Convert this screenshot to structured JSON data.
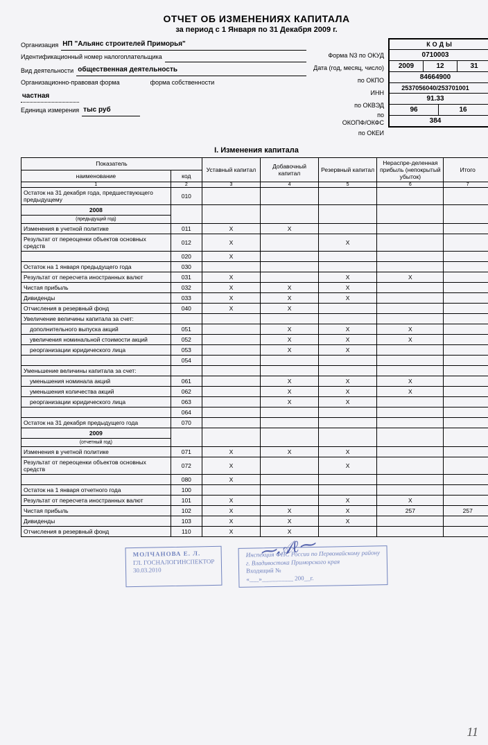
{
  "title": "ОТЧЕТ ОБ ИЗМЕНЕНИЯХ КАПИТАЛА",
  "period": "за период с 1 Января по 31 Декабря 2009 г.",
  "header": {
    "org_label": "Организация",
    "org_value": "НП \"Альянс строителей Приморья\"",
    "inn_label": "Идентификационный номер налогоплательщика",
    "activity_label": "Вид деятельности",
    "activity_value": "общественная деятельность",
    "form_label": "Организационно-правовая форма",
    "own_label": "форма собственности",
    "private": "частная",
    "unit_label": "Единица измерения",
    "unit_value": "тыс руб"
  },
  "code_labels": {
    "okud": "Форма N3 по ОКУД",
    "date": "Дата (год, месяц, число)",
    "okpo": "по ОКПО",
    "inn": "ИНН",
    "okved": "по ОКВЭД",
    "okopf": "по\nОКОПФ/ОКФС",
    "okei": "по ОКЕИ"
  },
  "codes": {
    "header": "КОДЫ",
    "okud": "0710003",
    "date_y": "2009",
    "date_m": "12",
    "date_d": "31",
    "okpo": "84664900",
    "inn": "2537056040/253701001",
    "okved": "91.33",
    "okopf": "96",
    "okfs": "16",
    "okei": "384"
  },
  "section1_title": "I. Изменения капитала",
  "table": {
    "head": {
      "indicator": "Показатель",
      "name": "наименование",
      "code": "код",
      "c3": "Уставный капитал",
      "c4": "Добавочный капитал",
      "c5": "Резервный капитал",
      "c6": "Нераспре-деленная прибыль (непокрытый убыток)",
      "c7": "Итого"
    },
    "colnums": [
      "1",
      "2",
      "3",
      "4",
      "5",
      "6",
      "7"
    ],
    "rows": [
      {
        "t": "d",
        "name": "Остаток на 31 декабря года, предшествующего предыдущему",
        "code": "010"
      },
      {
        "t": "y",
        "year": "2008",
        "note": "(предыдущий год)"
      },
      {
        "t": "d",
        "name": "Изменения в учетной политике",
        "code": "011",
        "v": [
          "Х",
          "Х",
          "",
          "",
          ""
        ]
      },
      {
        "t": "d",
        "name": "Результат от переоценки объектов основных средств",
        "code": "012",
        "v": [
          "Х",
          "",
          "Х",
          "",
          ""
        ]
      },
      {
        "t": "d",
        "name": "",
        "code": "020",
        "v": [
          "Х",
          "",
          "",
          "",
          ""
        ]
      },
      {
        "t": "d",
        "name": "Остаток на 1 января предыдущего года",
        "code": "030"
      },
      {
        "t": "d",
        "name": "Результат от пересчета иностранных валют",
        "code": "031",
        "v": [
          "Х",
          "",
          "Х",
          "Х",
          ""
        ]
      },
      {
        "t": "d",
        "name": "Чистая прибыль",
        "code": "032",
        "v": [
          "Х",
          "Х",
          "Х",
          "",
          ""
        ]
      },
      {
        "t": "d",
        "name": "Дивиденды",
        "code": "033",
        "v": [
          "Х",
          "Х",
          "Х",
          "",
          ""
        ]
      },
      {
        "t": "d",
        "name": "Отчисления в резервный фонд",
        "code": "040",
        "v": [
          "Х",
          "Х",
          "",
          "",
          ""
        ]
      },
      {
        "t": "d",
        "name": "Увеличение величины капитала за счет:",
        "code": ""
      },
      {
        "t": "d",
        "name": "  дополнительного выпуска акций",
        "code": "051",
        "v": [
          "",
          "Х",
          "Х",
          "Х",
          ""
        ]
      },
      {
        "t": "d",
        "name": "  увеличения номинальной стоимости акций",
        "code": "052",
        "v": [
          "",
          "Х",
          "Х",
          "Х",
          ""
        ]
      },
      {
        "t": "d",
        "name": "  реорганизации юридического лица",
        "code": "053",
        "v": [
          "",
          "Х",
          "Х",
          "",
          ""
        ]
      },
      {
        "t": "d",
        "name": "",
        "code": "054"
      },
      {
        "t": "d",
        "name": "Уменьшение величины капитала за счет:",
        "code": ""
      },
      {
        "t": "d",
        "name": "  уменьшения номинала акций",
        "code": "061",
        "v": [
          "",
          "Х",
          "Х",
          "Х",
          ""
        ]
      },
      {
        "t": "d",
        "name": "  уменьшения количества акций",
        "code": "062",
        "v": [
          "",
          "Х",
          "Х",
          "Х",
          ""
        ]
      },
      {
        "t": "d",
        "name": "  реорганизации юридического лица",
        "code": "063",
        "v": [
          "",
          "Х",
          "Х",
          "",
          ""
        ]
      },
      {
        "t": "d",
        "name": "",
        "code": "064"
      },
      {
        "t": "d",
        "name": "Остаток на 31 декабря предыдущего года",
        "code": "070"
      },
      {
        "t": "y",
        "year": "2009",
        "note": "(отчетный год)"
      },
      {
        "t": "d",
        "name": "Изменения в учетной политике",
        "code": "071",
        "v": [
          "Х",
          "Х",
          "Х",
          "",
          ""
        ]
      },
      {
        "t": "d",
        "name": "Результат от переоценки объектов основных средств",
        "code": "072",
        "v": [
          "Х",
          "",
          "Х",
          "",
          ""
        ]
      },
      {
        "t": "d",
        "name": "",
        "code": "080",
        "v": [
          "Х",
          "",
          "",
          "",
          ""
        ]
      },
      {
        "t": "d",
        "name": "Остаток на 1 января отчетного года",
        "code": "100"
      },
      {
        "t": "d",
        "name": "Результат от пересчета иностранных валют",
        "code": "101",
        "v": [
          "Х",
          "",
          "Х",
          "Х",
          ""
        ]
      },
      {
        "t": "d",
        "name": "Чистая прибыль",
        "code": "102",
        "v": [
          "Х",
          "Х",
          "Х",
          "257",
          "257"
        ]
      },
      {
        "t": "d",
        "name": "Дивиденды",
        "code": "103",
        "v": [
          "Х",
          "Х",
          "Х",
          "",
          ""
        ]
      },
      {
        "t": "d",
        "name": "Отчисления в резервный фонд",
        "code": "110",
        "v": [
          "Х",
          "Х",
          "",
          "",
          ""
        ]
      }
    ]
  },
  "stamps": {
    "s1_l1": "МОЛЧАНОВА Е. Л.",
    "s1_l2": "ГЛ. ГОСНАЛОГИНСПЕКТОР",
    "s1_l3": "30.03.2010",
    "s2_l1": "Инспекция ФНС России по Первомайскому району",
    "s2_l2": "г. Владивостока Приморского края",
    "s2_l3": "Входящий №",
    "s2_l4": "«___»__________ 200__г."
  },
  "pagenum": "11"
}
